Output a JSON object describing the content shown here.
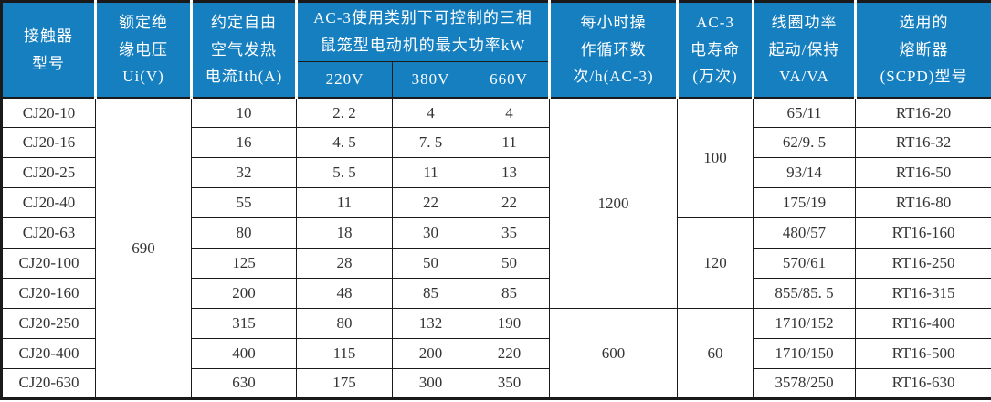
{
  "colors": {
    "header_bg": "#157fc0",
    "header_text": "#ffffff",
    "grid": "#1a1a1a",
    "cell_text": "#333333"
  },
  "table": {
    "headers": {
      "model": "接触器\n型号",
      "ui": "额定绝\n缘电压\nUi(V)",
      "ith": "约定自由\n空气发热\n电流Ith(A)",
      "ac3_group": "AC-3使用类别下可控制的三相\n鼠笼型电动机的最大功率kW",
      "v220": "220V",
      "v380": "380V",
      "v660": "660V",
      "cycles": "每小时操\n作循环数\n次/h(AC-3)",
      "life": "AC-3\n电寿命\n(万次)",
      "coil": "线圈功率\n起动/保持\nVA/VA",
      "fuse": "选用的\n熔断器\n(SCPD)型号"
    },
    "merged": {
      "ui": {
        "value": "690",
        "rowspan": 10,
        "start": 0
      },
      "cycles": [
        {
          "value": "1200",
          "rowspan": 7,
          "start": 0
        },
        {
          "value": "600",
          "rowspan": 3,
          "start": 7
        }
      ],
      "life": [
        {
          "value": "100",
          "rowspan": 4,
          "start": 0
        },
        {
          "value": "120",
          "rowspan": 3,
          "start": 4
        },
        {
          "value": "60",
          "rowspan": 3,
          "start": 7
        }
      ]
    },
    "rows": [
      {
        "model": "CJ20-10",
        "ith": "10",
        "p220": "2. 2",
        "p380": "4",
        "p660": "4",
        "coil": "65/11",
        "fuse": "RT16-20"
      },
      {
        "model": "CJ20-16",
        "ith": "16",
        "p220": "4. 5",
        "p380": "7. 5",
        "p660": "11",
        "coil": "62/9. 5",
        "fuse": "RT16-32"
      },
      {
        "model": "CJ20-25",
        "ith": "32",
        "p220": "5. 5",
        "p380": "11",
        "p660": "13",
        "coil": "93/14",
        "fuse": "RT16-50"
      },
      {
        "model": "CJ20-40",
        "ith": "55",
        "p220": "11",
        "p380": "22",
        "p660": "22",
        "coil": "175/19",
        "fuse": "RT16-80"
      },
      {
        "model": "CJ20-63",
        "ith": "80",
        "p220": "18",
        "p380": "30",
        "p660": "35",
        "coil": "480/57",
        "fuse": "RT16-160"
      },
      {
        "model": "CJ20-100",
        "ith": "125",
        "p220": "28",
        "p380": "50",
        "p660": "50",
        "coil": "570/61",
        "fuse": "RT16-250"
      },
      {
        "model": "CJ20-160",
        "ith": "200",
        "p220": "48",
        "p380": "85",
        "p660": "85",
        "coil": "855/85. 5",
        "fuse": "RT16-315"
      },
      {
        "model": "CJ20-250",
        "ith": "315",
        "p220": "80",
        "p380": "132",
        "p660": "190",
        "coil": "1710/152",
        "fuse": "RT16-400"
      },
      {
        "model": "CJ20-400",
        "ith": "400",
        "p220": "115",
        "p380": "200",
        "p660": "220",
        "coil": "1710/150",
        "fuse": "RT16-500"
      },
      {
        "model": "CJ20-630",
        "ith": "630",
        "p220": "175",
        "p380": "300",
        "p660": "350",
        "coil": "3578/250",
        "fuse": "RT16-630"
      }
    ]
  }
}
